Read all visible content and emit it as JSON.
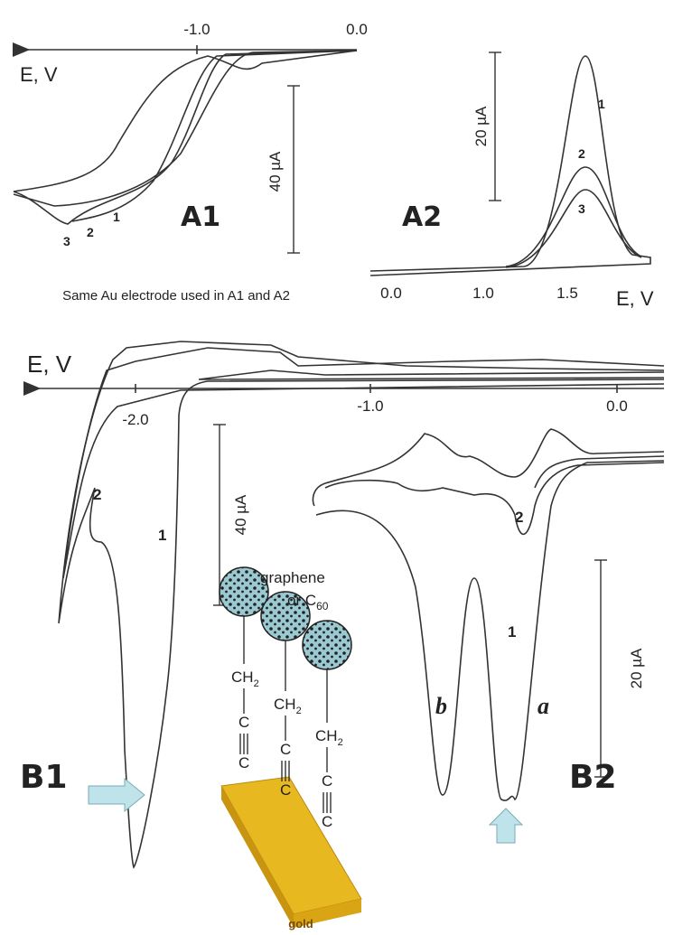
{
  "panel_a1": {
    "ticks": [
      "-1.0",
      "0.0"
    ],
    "axis_label": "E, V",
    "scale": "40 µA",
    "curves": [
      "1",
      "2",
      "3"
    ],
    "label": "A1"
  },
  "panel_a2": {
    "ticks": [
      "0.0",
      "1.0",
      "1.5"
    ],
    "axis_label": "E, V",
    "scale": "20 µA",
    "curves": [
      "1",
      "2",
      "3"
    ],
    "label": "A2"
  },
  "caption": "Same Au electrode used in A1 and A2",
  "panel_b1": {
    "ticks": [
      "-2.0",
      "-1.0",
      "0.0"
    ],
    "axis_label": "E, V",
    "scale": "40 µA",
    "curves": [
      "1",
      "2"
    ],
    "label": "B1"
  },
  "panel_b2": {
    "scale": "20 µA",
    "curves": [
      "1",
      "2"
    ],
    "peaks": [
      "b",
      "a"
    ],
    "label": "B2"
  },
  "molecule": {
    "line1": "graphene",
    "line2": {
      "text": "or C",
      "subscript": "60"
    },
    "group": {
      "text": "CH",
      "subscript": "2"
    },
    "atom": "C",
    "substrate": "gold"
  }
}
